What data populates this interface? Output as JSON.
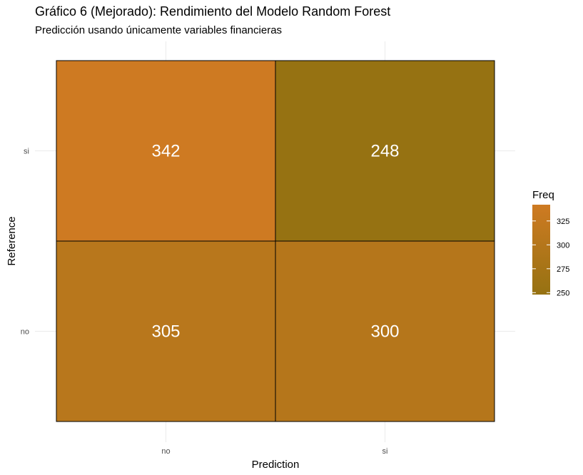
{
  "chart_data": {
    "type": "heatmap",
    "title": "Gráfico 6 (Mejorado): Rendimiento del Modelo Random Forest",
    "subtitle": "Predicción usando únicamente variables financieras",
    "xlabel": "Prediction",
    "ylabel": "Reference",
    "x_categories": [
      "no",
      "si"
    ],
    "y_categories": [
      "no",
      "si"
    ],
    "cells": [
      {
        "x": "no",
        "y": "si",
        "value": 342
      },
      {
        "x": "si",
        "y": "si",
        "value": 248
      },
      {
        "x": "no",
        "y": "no",
        "value": 305
      },
      {
        "x": "si",
        "y": "no",
        "value": 300
      }
    ],
    "legend": {
      "title": "Freq",
      "ticks": [
        250,
        275,
        300,
        325
      ],
      "range": [
        248,
        342
      ],
      "color_low": "#967212",
      "color_high": "#CE7A22",
      "placement": "right"
    },
    "grid": true
  }
}
